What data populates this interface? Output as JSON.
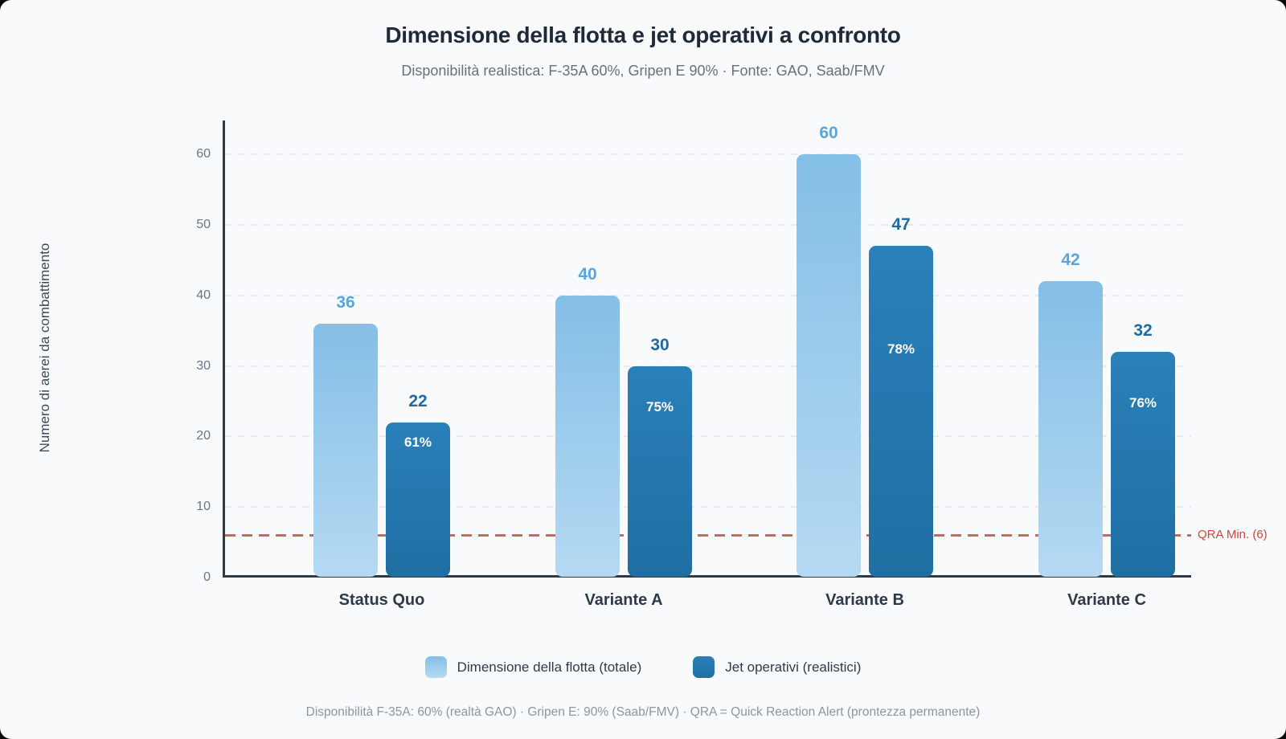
{
  "header": {
    "title": "Dimensione della flotta e jet operativi a confronto",
    "subtitle": "Disponibilità realistica: F-35A 60%, Gripen E 90% · Fonte: GAO, Saab/FMV"
  },
  "chart_data": {
    "type": "bar",
    "categories": [
      "Status Quo",
      "Variante A",
      "Variante B",
      "Variante C"
    ],
    "series": [
      {
        "name": "Dimensione della flotta (totale)",
        "values": [
          36,
          40,
          60,
          42
        ],
        "gradient_top": "#84bfe7",
        "gradient_bottom": "#b5d9f2",
        "value_label_color": "#58a6dd"
      },
      {
        "name": "Jet operativi (realistici)",
        "values": [
          22,
          30,
          47,
          32
        ],
        "bar_labels": [
          "61%",
          "75%",
          "78%",
          "76%"
        ],
        "gradient_top": "#2a80b9",
        "gradient_bottom": "#1f6fa3",
        "value_label_color": "#1c6ba5"
      }
    ],
    "ylabel": "Numero di aerei da combattimento",
    "yticks": [
      0,
      10,
      20,
      30,
      40,
      50,
      60
    ],
    "ylim": [
      0,
      65
    ],
    "grid": "horizontal-dashed",
    "legend_position": "bottom",
    "reference_line": {
      "value": 6,
      "label": "QRA Min. (6)",
      "line_color": "#c9685e",
      "label_color": "#ce4938",
      "style": "dashed"
    }
  },
  "footer": {
    "note": "Disponibilità F-35A: 60% (realtà GAO) · Gripen E: 90% (Saab/FMV) · QRA = Quick Reaction Alert (prontezza permanente)"
  }
}
